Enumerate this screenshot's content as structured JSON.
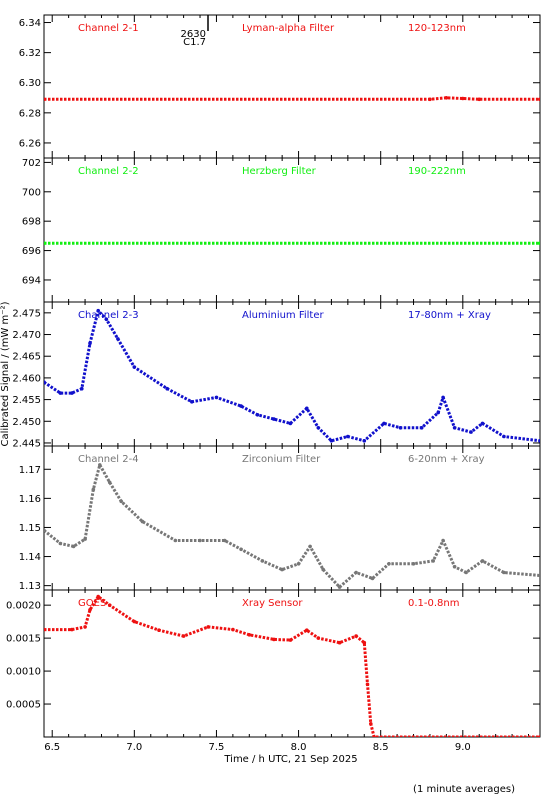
{
  "figure": {
    "ylabel": "Calibrated Signal / (mW m⁻²)",
    "xlabel": "Time / h UTC, 21 Sep 2025",
    "footer": "(1 minute averages)",
    "flare_marker": {
      "top": "2630",
      "bottom": "C1.7"
    }
  },
  "chart_data": [
    {
      "type": "scatter",
      "channel": "Channel 2-1",
      "filter": "Lyman-alpha Filter",
      "band": "120-123nm",
      "color": "#ee1111",
      "xlim": [
        6.45,
        9.47
      ],
      "ylim": [
        6.25,
        6.345
      ],
      "yticks": [
        6.26,
        6.28,
        6.3,
        6.32,
        6.34
      ],
      "ytick_labels": [
        "6.26",
        "6.28",
        "6.30",
        "6.32",
        "6.34"
      ],
      "points": [
        [
          6.45,
          6.289
        ],
        [
          8.8,
          6.289
        ],
        [
          8.9,
          6.29
        ],
        [
          9.0,
          6.2895
        ],
        [
          9.1,
          6.289
        ],
        [
          9.47,
          6.289
        ]
      ]
    },
    {
      "type": "scatter",
      "channel": "Channel 2-2",
      "filter": "Herzberg Filter",
      "band": "190-222nm",
      "color": "#11ee11",
      "xlim": [
        6.45,
        9.47
      ],
      "ylim": [
        692.5,
        702.3
      ],
      "yticks": [
        694,
        696,
        698,
        700,
        702
      ],
      "ytick_labels": [
        "694",
        "696",
        "698",
        "700",
        "702"
      ],
      "points": [
        [
          6.45,
          696.5
        ],
        [
          9.47,
          696.5
        ]
      ]
    },
    {
      "type": "scatter",
      "channel": "Channel 2-3",
      "filter": "Aluminium Filter",
      "band": "17-80nm + Xray",
      "color": "#1111cc",
      "xlim": [
        6.45,
        9.47
      ],
      "ylim": [
        2.4443,
        2.4775
      ],
      "yticks": [
        2.445,
        2.45,
        2.455,
        2.46,
        2.465,
        2.47,
        2.475
      ],
      "ytick_labels": [
        "2.445",
        "2.450",
        "2.455",
        "2.460",
        "2.465",
        "2.470",
        "2.475"
      ],
      "points": [
        [
          6.45,
          2.459
        ],
        [
          6.55,
          2.4565
        ],
        [
          6.62,
          2.4565
        ],
        [
          6.68,
          2.4575
        ],
        [
          6.73,
          2.468
        ],
        [
          6.78,
          2.4755
        ],
        [
          6.83,
          2.4735
        ],
        [
          6.9,
          2.469
        ],
        [
          7.0,
          2.4625
        ],
        [
          7.2,
          2.4575
        ],
        [
          7.35,
          2.4545
        ],
        [
          7.5,
          2.4555
        ],
        [
          7.65,
          2.4535
        ],
        [
          7.75,
          2.4515
        ],
        [
          7.85,
          2.4505
        ],
        [
          7.95,
          2.4495
        ],
        [
          8.05,
          2.453
        ],
        [
          8.12,
          2.4485
        ],
        [
          8.2,
          2.4455
        ],
        [
          8.3,
          2.4465
        ],
        [
          8.4,
          2.4455
        ],
        [
          8.52,
          2.4495
        ],
        [
          8.62,
          2.4485
        ],
        [
          8.75,
          2.4485
        ],
        [
          8.85,
          2.452
        ],
        [
          8.88,
          2.4555
        ],
        [
          8.95,
          2.4485
        ],
        [
          9.05,
          2.4475
        ],
        [
          9.12,
          2.4495
        ],
        [
          9.25,
          2.4465
        ],
        [
          9.47,
          2.4455
        ]
      ]
    },
    {
      "type": "scatter",
      "channel": "Channel 2-4",
      "filter": "Zirconium Filter",
      "band": "6-20nm + Xray",
      "color": "#777777",
      "xlim": [
        6.45,
        9.47
      ],
      "ylim": [
        1.1285,
        1.178
      ],
      "yticks": [
        1.13,
        1.14,
        1.15,
        1.16,
        1.17
      ],
      "ytick_labels": [
        "1.13",
        "1.14",
        "1.15",
        "1.16",
        "1.17"
      ],
      "points": [
        [
          6.45,
          1.149
        ],
        [
          6.55,
          1.1445
        ],
        [
          6.63,
          1.1435
        ],
        [
          6.7,
          1.146
        ],
        [
          6.75,
          1.163
        ],
        [
          6.79,
          1.1715
        ],
        [
          6.85,
          1.1655
        ],
        [
          6.92,
          1.159
        ],
        [
          7.05,
          1.152
        ],
        [
          7.25,
          1.1455
        ],
        [
          7.4,
          1.1455
        ],
        [
          7.55,
          1.1455
        ],
        [
          7.65,
          1.1425
        ],
        [
          7.78,
          1.1385
        ],
        [
          7.9,
          1.1355
        ],
        [
          8.0,
          1.1375
        ],
        [
          8.07,
          1.1435
        ],
        [
          8.15,
          1.1355
        ],
        [
          8.25,
          1.1295
        ],
        [
          8.35,
          1.1345
        ],
        [
          8.45,
          1.1325
        ],
        [
          8.55,
          1.1375
        ],
        [
          8.7,
          1.1375
        ],
        [
          8.82,
          1.1385
        ],
        [
          8.88,
          1.1455
        ],
        [
          8.95,
          1.1365
        ],
        [
          9.02,
          1.1345
        ],
        [
          9.12,
          1.1385
        ],
        [
          9.25,
          1.1345
        ],
        [
          9.47,
          1.1335
        ]
      ]
    },
    {
      "type": "scatter",
      "channel": "GOES",
      "filter": "Xray Sensor",
      "band": "0.1-0.8nm",
      "color": "#ee1111",
      "xlim": [
        6.45,
        9.47
      ],
      "ylim": [
        0.0,
        0.00223
      ],
      "yticks": [
        0.0005,
        0.001,
        0.0015,
        0.002
      ],
      "ytick_labels": [
        "0.0005",
        "0.0010",
        "0.0015",
        "0.0020"
      ],
      "points": [
        [
          6.45,
          0.00163
        ],
        [
          6.62,
          0.00163
        ],
        [
          6.7,
          0.00167
        ],
        [
          6.73,
          0.00193
        ],
        [
          6.78,
          0.00213
        ],
        [
          6.85,
          0.002
        ],
        [
          7.0,
          0.00175
        ],
        [
          7.15,
          0.00162
        ],
        [
          7.3,
          0.00153
        ],
        [
          7.45,
          0.00167
        ],
        [
          7.6,
          0.00163
        ],
        [
          7.7,
          0.00155
        ],
        [
          7.85,
          0.00148
        ],
        [
          7.95,
          0.00147
        ],
        [
          8.05,
          0.00162
        ],
        [
          8.12,
          0.0015
        ],
        [
          8.25,
          0.00143
        ],
        [
          8.35,
          0.00153
        ],
        [
          8.4,
          0.00143
        ],
        [
          8.42,
          0.0008
        ],
        [
          8.44,
          0.0002
        ],
        [
          8.46,
          0.0
        ],
        [
          9.47,
          0.0
        ]
      ]
    }
  ],
  "xaxis": {
    "ticks": [
      6.5,
      7.0,
      7.5,
      8.0,
      8.5,
      9.0
    ],
    "tick_labels": [
      "6.5",
      "7.0",
      "7.5",
      "8.0",
      "8.5",
      "9.0"
    ],
    "minor_step": 0.1
  }
}
